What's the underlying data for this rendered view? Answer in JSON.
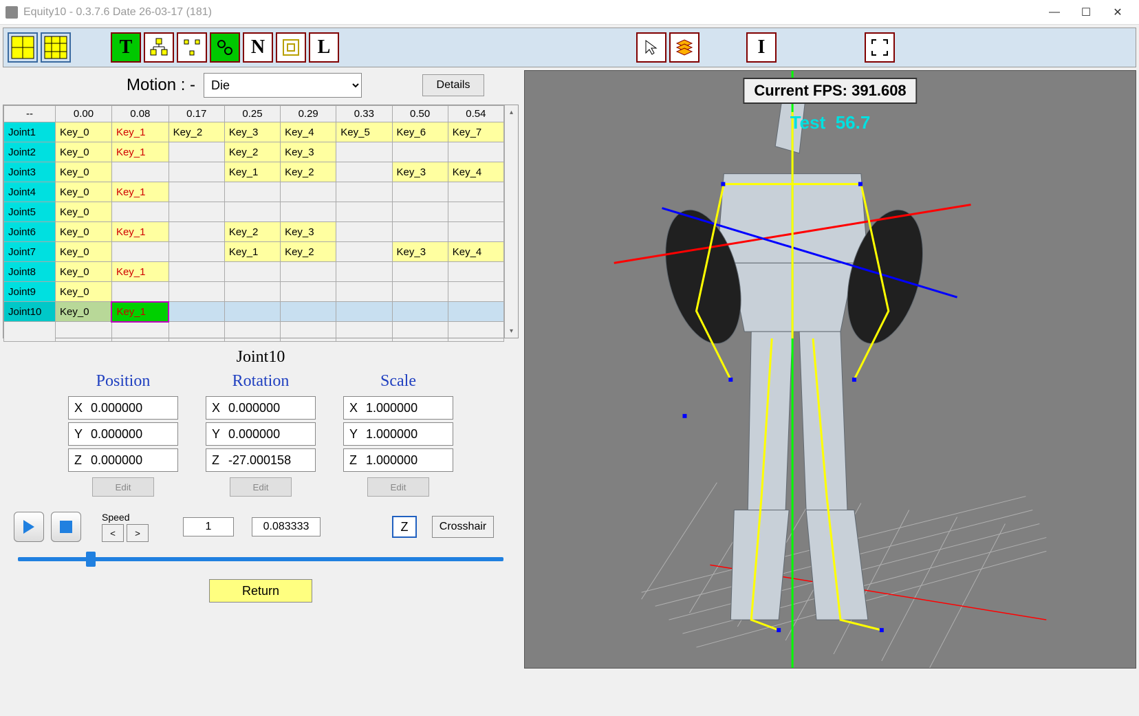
{
  "window": {
    "title": "Equity10 - 0.3.7.6  Date 26-03-17  (181)"
  },
  "toolbar": {
    "buttons": [
      {
        "name": "grid-2x2",
        "fill": "#ffff00"
      },
      {
        "name": "grid-3x3",
        "fill": "#ffff00"
      },
      {
        "name": "tool-t",
        "label": "T",
        "bg": "green"
      },
      {
        "name": "tool-hierarchy",
        "bg": "white"
      },
      {
        "name": "tool-nodes",
        "bg": "white"
      },
      {
        "name": "tool-chain",
        "bg": "green"
      },
      {
        "name": "tool-n",
        "label": "N",
        "bg": "white"
      },
      {
        "name": "tool-frame",
        "bg": "white"
      },
      {
        "name": "tool-l",
        "label": "L",
        "bg": "white"
      },
      {
        "name": "tool-cursor",
        "bg": "white"
      },
      {
        "name": "tool-stack",
        "bg": "white"
      },
      {
        "name": "tool-i",
        "label": "I",
        "bg": "white"
      },
      {
        "name": "tool-fullscreen",
        "bg": "white"
      }
    ]
  },
  "motion": {
    "label": "Motion : -",
    "selected": "Die",
    "details_label": "Details"
  },
  "keyframe_table": {
    "time_header": "--",
    "times": [
      "0.00",
      "0.08",
      "0.17",
      "0.25",
      "0.29",
      "0.33",
      "0.50",
      "0.54"
    ],
    "rows": [
      {
        "joint": "Joint1",
        "cells": [
          "Key_0",
          "Key_1",
          "Key_2",
          "Key_3",
          "Key_4",
          "Key_5",
          "Key_6",
          "Key_7"
        ]
      },
      {
        "joint": "Joint2",
        "cells": [
          "Key_0",
          "Key_1",
          "",
          "Key_2",
          "Key_3",
          "",
          "",
          ""
        ]
      },
      {
        "joint": "Joint3",
        "cells": [
          "Key_0",
          "",
          "",
          "Key_1",
          "Key_2",
          "",
          "Key_3",
          "Key_4"
        ]
      },
      {
        "joint": "Joint4",
        "cells": [
          "Key_0",
          "Key_1",
          "",
          "",
          "",
          "",
          "",
          ""
        ]
      },
      {
        "joint": "Joint5",
        "cells": [
          "Key_0",
          "",
          "",
          "",
          "",
          "",
          "",
          ""
        ]
      },
      {
        "joint": "Joint6",
        "cells": [
          "Key_0",
          "Key_1",
          "",
          "Key_2",
          "Key_3",
          "",
          "",
          ""
        ]
      },
      {
        "joint": "Joint7",
        "cells": [
          "Key_0",
          "",
          "",
          "Key_1",
          "Key_2",
          "",
          "Key_3",
          "Key_4"
        ]
      },
      {
        "joint": "Joint8",
        "cells": [
          "Key_0",
          "Key_1",
          "",
          "",
          "",
          "",
          "",
          ""
        ]
      },
      {
        "joint": "Joint9",
        "cells": [
          "Key_0",
          "",
          "",
          "",
          "",
          "",
          "",
          ""
        ]
      },
      {
        "joint": "Joint10",
        "cells": [
          "Key_0",
          "Key_1",
          "",
          "",
          "",
          "",
          "",
          ""
        ],
        "selected": true,
        "selected_cell": 1
      }
    ],
    "red_col": 1
  },
  "transform": {
    "joint_label": "Joint10",
    "position": {
      "label": "Position",
      "x": "0.000000",
      "y": "0.000000",
      "z": "0.000000"
    },
    "rotation": {
      "label": "Rotation",
      "x": "0.000000",
      "y": "0.000000",
      "z": "-27.000158"
    },
    "scale": {
      "label": "Scale",
      "x": "1.000000",
      "y": "1.000000",
      "z": "1.000000"
    },
    "edit_label": "Edit"
  },
  "playback": {
    "speed_label": "Speed",
    "frame_value": "1",
    "time_value": "0.083333",
    "z_label": "Z",
    "crosshair_label": "Crosshair",
    "slider_percent": 14
  },
  "return_label": "Return",
  "viewport": {
    "fps_label": "Current  FPS:",
    "fps_value": "391.608",
    "test_label": "Test",
    "test_value": "56.7",
    "axis_colors": {
      "x": "#ff0000",
      "y": "#00ff00",
      "z": "#0000ff"
    },
    "skeleton_color": "#ffff00",
    "grid_color": "#b0b0b0",
    "bg": "#808080"
  }
}
